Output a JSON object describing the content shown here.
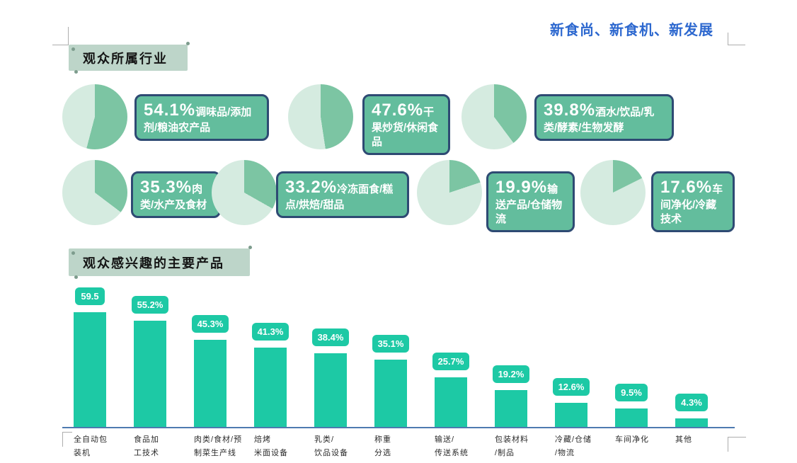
{
  "page": {
    "title_right": "新食尚、新食机、新发展"
  },
  "sections": {
    "industries_title": "观众所属行业",
    "products_title": "观众感兴趣的主要产品"
  },
  "industries": [
    {
      "pct": "54.1%",
      "label": "调味品/添加剂/粮油农产品",
      "value": 54.1
    },
    {
      "pct": "47.6%",
      "label": "干果炒货/休闲食品",
      "value": 47.6
    },
    {
      "pct": "39.8%",
      "label": "酒水/饮品/乳类/酵素/生物发酵",
      "value": 39.8
    },
    {
      "pct": "35.3%",
      "label": "肉类/水产及食材",
      "value": 35.3
    },
    {
      "pct": "33.2%",
      "label": "冷冻面食/糕点/烘焙/甜品",
      "value": 33.2
    },
    {
      "pct": "19.9%",
      "label": "输送产品/仓储物流",
      "value": 19.9
    },
    {
      "pct": "17.6%",
      "label": "车间净化/冷藏技术",
      "value": 17.6
    }
  ],
  "bar_chart": {
    "values": [
      59.5,
      55.2,
      45.3,
      41.3,
      38.4,
      35.1,
      25.7,
      19.2,
      12.6,
      9.5,
      4.3
    ],
    "value_labels": [
      "59.5",
      "55.2%",
      "45.3%",
      "41.3%",
      "38.4%",
      "35.1%",
      "25.7%",
      "19.2%",
      "12.6%",
      "9.5%",
      "4.3%"
    ],
    "categories_display": [
      "全自动包\n装机",
      "食品加\n工技术",
      "肉类/食材/预\n制菜生产线",
      "焙烤\n米面设备",
      "乳类/\n饮品设备",
      "称重\n分选",
      "输送/\n传送系统",
      "包装材料\n/制品",
      "冷藏/仓储\n/物流",
      "车间净化",
      "其他"
    ]
  },
  "colors": {
    "pie_dark": "#7cc5a3",
    "pie_light": "#d5ebe0",
    "bar_teal": "#1dc9a5",
    "label_box_fill": "#63bd9d",
    "label_box_border": "#2e4a73",
    "title_blue": "#2d68cf",
    "tag_bg": "#bdd5c9",
    "axis_blue": "#4e7ab0"
  },
  "chart_data": [
    {
      "type": "pie",
      "title": "观众所属行业",
      "note": "seven mini pie charts, each dark slice = category share starting at 12 o'clock clockwise",
      "items": [
        {
          "label": "调味品/添加剂/粮油农产品",
          "value": 54.1
        },
        {
          "label": "干果炒货/休闲食品",
          "value": 47.6
        },
        {
          "label": "酒水/饮品/乳类/酵素/生物发酵",
          "value": 39.8
        },
        {
          "label": "肉类/水产及食材",
          "value": 35.3
        },
        {
          "label": "冷冻面食/糕点/烘焙/甜品",
          "value": 33.2
        },
        {
          "label": "输送产品/仓储物流",
          "value": 19.9
        },
        {
          "label": "车间净化/冷藏技术",
          "value": 17.6
        }
      ]
    },
    {
      "type": "bar",
      "title": "观众感兴趣的主要产品",
      "categories": [
        "全自动包装机",
        "食品加工技术",
        "肉类/食材/预制菜生产线",
        "焙烤米面设备",
        "乳类/饮品设备",
        "称重分选",
        "输送/传送系统",
        "包装材料/制品",
        "冷藏/仓储/物流",
        "车间净化",
        "其他"
      ],
      "values": [
        59.5,
        55.2,
        45.3,
        41.3,
        38.4,
        35.1,
        25.7,
        19.2,
        12.6,
        9.5,
        4.3
      ],
      "value_labels": [
        "59.5",
        "55.2%",
        "45.3%",
        "41.3%",
        "38.4%",
        "35.1%",
        "25.7%",
        "19.2%",
        "12.6%",
        "9.5%",
        "4.3%"
      ],
      "ylim": [
        0,
        65
      ],
      "grid": false,
      "legend": "none"
    }
  ]
}
